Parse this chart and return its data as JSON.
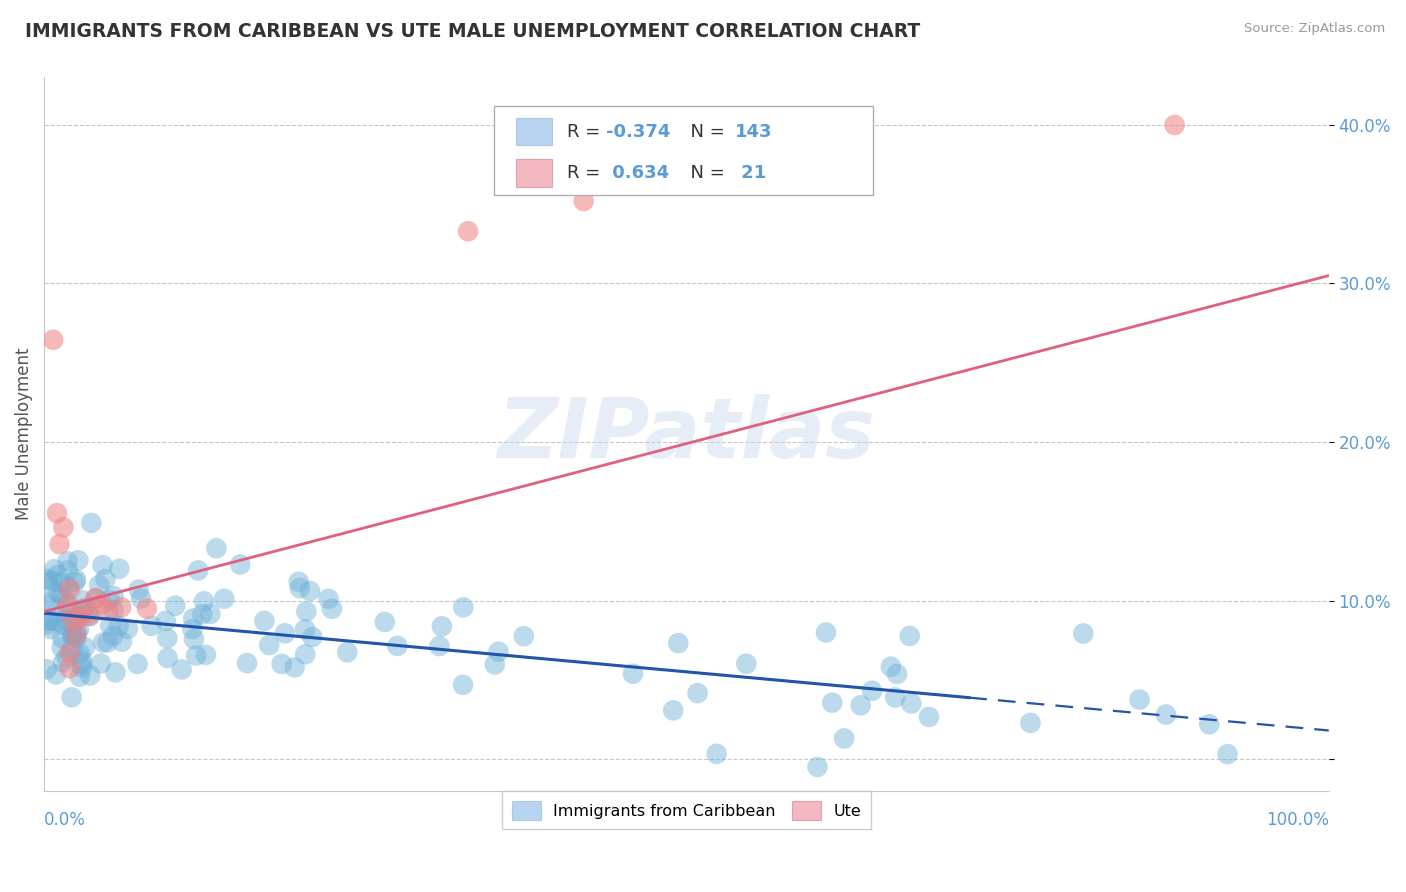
{
  "title": "IMMIGRANTS FROM CARIBBEAN VS UTE MALE UNEMPLOYMENT CORRELATION CHART",
  "source": "Source: ZipAtlas.com",
  "ylabel": "Male Unemployment",
  "xlim": [
    0.0,
    1.0
  ],
  "ylim": [
    -0.02,
    0.43
  ],
  "yticks": [
    0.0,
    0.1,
    0.2,
    0.3,
    0.4
  ],
  "ytick_labels": [
    "",
    "10.0%",
    "20.0%",
    "30.0%",
    "40.0%"
  ],
  "legend_labels": [
    "Immigrants from Caribbean",
    "Ute"
  ],
  "blue_color": "#6aaed6",
  "pink_color": "#f08080",
  "blue_legend_color": "#b8d4f0",
  "pink_legend_color": "#f4b8c0",
  "blue_trend_color": "#2255aa",
  "pink_trend_color": "#e06080",
  "axis_color": "#5b9bd5",
  "grid_color": "#c8c8c8",
  "title_color": "#333333",
  "watermark": "ZIPatlas",
  "R_blue": -0.374,
  "R_pink": 0.634,
  "N_blue": 143,
  "N_pink": 21,
  "blue_trend_start_x": 0.0,
  "blue_trend_end_solid_x": 0.72,
  "blue_trend_end_x": 1.0,
  "blue_trend_start_y": 0.092,
  "blue_trend_end_y": 0.018,
  "pink_trend_start_x": 0.0,
  "pink_trend_end_x": 1.0,
  "pink_trend_start_y": 0.093,
  "pink_trend_end_y": 0.305
}
